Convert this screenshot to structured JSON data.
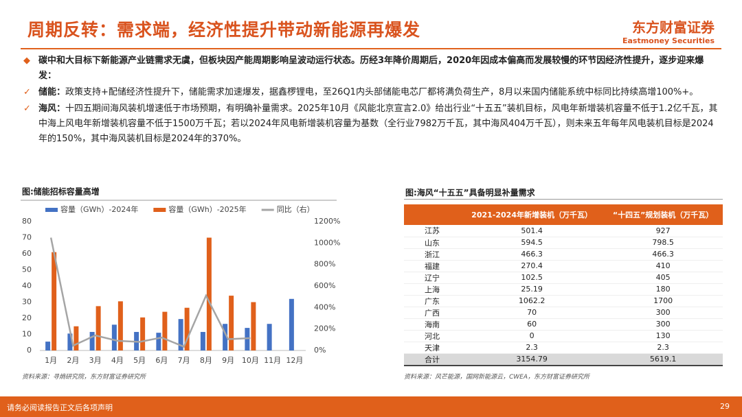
{
  "header": {
    "title": "周期反转：需求端，经济性提升带动新能源再爆发",
    "brand": "东方财富证券",
    "brand_en": "Eastmoney Securities"
  },
  "bullets": [
    {
      "text": "碳中和大目标下新能源产业链需求无虞，但板块因产能周期影响呈波动运行状态。历经3年降价周期后，2020年因成本偏高而发展较慢的环节因经济性提升，逐步迎来爆发："
    },
    {
      "lead": "储能：",
      "text": "政策支持+配储经济性提升下，储能需求加速爆发，据鑫椤锂电，至26Q1内头部储能电芯厂都将满负荷生产，8月以来国内储能系统中标同比持续高增100%+。"
    },
    {
      "lead": "海风：",
      "text": "十四五期间海风装机增速低于市场预期，有明确补量需求。2025年10月《风能北京宣言2.0》给出行业“十五五”装机目标，风电年新增装机容量不低于1.2亿千瓦，其中海上风电年新增装机容量不低于1500万千瓦；若以2024年风电新增装机容量为基数（全行业7982万千瓦，其中海风404万千瓦），则未来五年每年风电装机目标是2024年的150%，其中海风装机目标是2024年的370%。"
    }
  ],
  "chart_data": {
    "type": "bar",
    "title": "图:储能招标容量高增",
    "source": "资料来源：寻熵研究院，东方财富证券研究所",
    "categories": [
      "1月",
      "2月",
      "3月",
      "4月",
      "5月",
      "6月",
      "7月",
      "8月",
      "9月",
      "10月",
      "11月",
      "12月"
    ],
    "series": [
      {
        "name": "容量（GWh）-2024年",
        "color": "#4472c4",
        "values": [
          5.5,
          10.5,
          11.5,
          16,
          11.5,
          11,
          19.5,
          11.5,
          16.5,
          14,
          16.5,
          32
        ]
      },
      {
        "name": "容量（GWh）-2025年",
        "color": "#e0601b",
        "values": [
          61,
          15,
          27.5,
          30.5,
          20.5,
          24,
          26.5,
          70,
          34,
          30,
          null,
          null
        ]
      },
      {
        "name": "同比（右）",
        "color": "#a5a5a5",
        "type": "line",
        "axis": "y2",
        "values": [
          1050,
          45,
          140,
          90,
          80,
          120,
          35,
          510,
          105,
          115,
          null,
          null
        ]
      }
    ],
    "ylim": [
      0,
      80
    ],
    "yticks": [
      0,
      10,
      20,
      30,
      40,
      50,
      60,
      70,
      80
    ],
    "y2lim": [
      0,
      1200
    ],
    "y2ticks": [
      {
        "value": 0,
        "label": "0%"
      },
      {
        "value": 200,
        "label": "200%"
      },
      {
        "value": 400,
        "label": "400%"
      },
      {
        "value": 600,
        "label": "600%"
      },
      {
        "value": 800,
        "label": "800%"
      },
      {
        "value": 1000,
        "label": "1000%"
      },
      {
        "value": 1200,
        "label": "1200%"
      }
    ]
  },
  "table": {
    "title": "图:海风“十五五”具备明显补量需求",
    "columns": [
      "2021-2024年新增装机（万千瓦）",
      "“十四五”规划装机（万千瓦）"
    ],
    "rows": [
      [
        "江苏",
        "501.4",
        "927"
      ],
      [
        "山东",
        "594.5",
        "798.5"
      ],
      [
        "浙江",
        "466.3",
        "466.3"
      ],
      [
        "福建",
        "270.4",
        "410"
      ],
      [
        "辽宁",
        "102.5",
        "405"
      ],
      [
        "上海",
        "25.19",
        "180"
      ],
      [
        "广东",
        "1062.2",
        "1700"
      ],
      [
        "广西",
        "70",
        "300"
      ],
      [
        "海南",
        "60",
        "300"
      ],
      [
        "河北",
        "0",
        "130"
      ],
      [
        "天津",
        "2.3",
        "2.3"
      ],
      [
        "合计",
        "3154.79",
        "5619.1"
      ]
    ],
    "source": "资料来源：风芒能源，国网新能源云，CWEA，东方财富证券研究所"
  },
  "footer": {
    "notice": "请务必阅读报告正文后各项声明",
    "page": "29"
  }
}
